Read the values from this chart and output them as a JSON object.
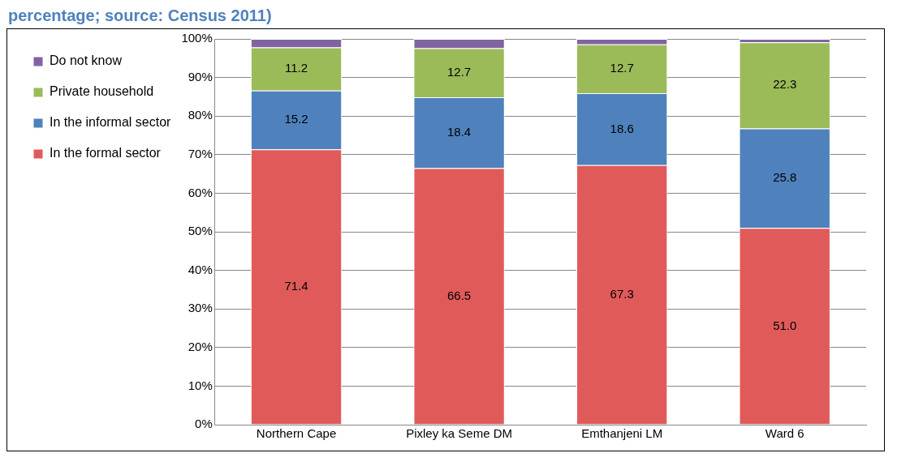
{
  "chart_data": {
    "type": "bar",
    "title": "percentage; source: Census 2011)",
    "categories": [
      "Northern Cape",
      "Pixley ka Seme DM",
      "Emthanjeni LM",
      "Ward 6"
    ],
    "stacked": true,
    "series": [
      {
        "name": "In the formal sector",
        "color": "#e05a5a",
        "values": [
          71.4,
          66.5,
          67.3,
          51.0
        ],
        "value_labels": [
          "71.4",
          "66.5",
          "67.3",
          "51.0"
        ]
      },
      {
        "name": "In the informal sector",
        "color": "#4f81bd",
        "values": [
          15.2,
          18.4,
          18.6,
          25.8
        ],
        "value_labels": [
          "15.2",
          "18.4",
          "18.6",
          "25.8"
        ]
      },
      {
        "name": "Private household",
        "color": "#9bbb59",
        "values": [
          11.2,
          12.7,
          12.7,
          22.3
        ],
        "value_labels": [
          "11.2",
          "12.7",
          "12.7",
          "22.3"
        ]
      },
      {
        "name": "Do not know",
        "color": "#8064a2",
        "values": [
          2.2,
          2.4,
          1.4,
          0.9
        ]
      }
    ],
    "ylim": [
      0,
      100
    ],
    "yticks": [
      {
        "value": 0,
        "label": "0%"
      },
      {
        "value": 10,
        "label": "10%"
      },
      {
        "value": 20,
        "label": "20%"
      },
      {
        "value": 30,
        "label": "30%"
      },
      {
        "value": 40,
        "label": "40%"
      },
      {
        "value": 50,
        "label": "50%"
      },
      {
        "value": 60,
        "label": "60%"
      },
      {
        "value": 70,
        "label": "70%"
      },
      {
        "value": 80,
        "label": "80%"
      },
      {
        "value": 90,
        "label": "90%"
      },
      {
        "value": 100,
        "label": "100%"
      }
    ],
    "grid": "y",
    "legend": "left"
  }
}
